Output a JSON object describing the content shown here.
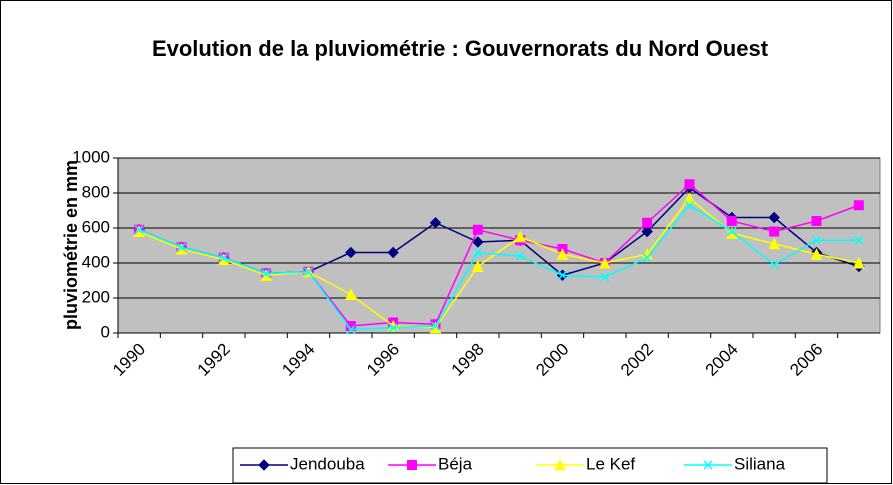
{
  "chart_data": {
    "type": "line",
    "title": "Evolution de la pluviométrie : Gouvernorats du Nord Ouest",
    "y_label": "pluviométrie en mm",
    "categories": [
      "1990",
      null,
      "1992",
      null,
      "1994",
      null,
      "1996",
      null,
      "1998",
      null,
      "2000",
      null,
      "2002",
      null,
      "2004",
      null,
      "2006",
      null
    ],
    "series": [
      {
        "name": "Jendouba",
        "color": "#000080",
        "marker": "diamond",
        "values": [
          590,
          490,
          430,
          340,
          350,
          460,
          460,
          630,
          520,
          530,
          330,
          400,
          580,
          830,
          660,
          660,
          460,
          380
        ]
      },
      {
        "name": "Béja",
        "color": "#ff00ff",
        "marker": "square",
        "values": [
          590,
          490,
          430,
          340,
          350,
          40,
          60,
          50,
          590,
          530,
          480,
          400,
          630,
          850,
          640,
          580,
          640,
          730
        ]
      },
      {
        "name": "Le Kef",
        "color": "#ffff00",
        "marker": "triangle",
        "values": [
          580,
          480,
          420,
          330,
          350,
          220,
          40,
          30,
          380,
          550,
          450,
          400,
          450,
          770,
          570,
          510,
          450,
          400
        ]
      },
      {
        "name": "Siliana",
        "color": "#00ffff",
        "marker": "x",
        "values": [
          590,
          490,
          430,
          340,
          350,
          20,
          30,
          40,
          460,
          440,
          330,
          320,
          430,
          730,
          580,
          390,
          530,
          530
        ]
      }
    ],
    "ylim": [
      0,
      1000
    ],
    "yticks": [
      0,
      200,
      400,
      600,
      800,
      1000
    ],
    "grid": true,
    "legend": "bottom"
  }
}
